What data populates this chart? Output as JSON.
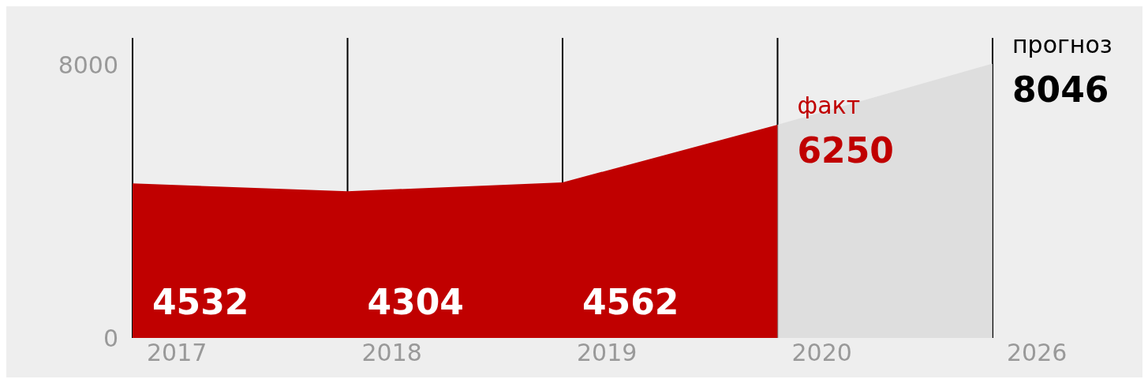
{
  "chart_data": {
    "type": "area",
    "categories": [
      "2017",
      "2018",
      "2019",
      "2020",
      "2026"
    ],
    "series": [
      {
        "name": "факт",
        "color": "#c00000",
        "values": [
          4532,
          4304,
          4562,
          6250,
          null
        ],
        "value_labels": [
          "4532",
          "4304",
          "4562",
          "6250",
          null
        ]
      },
      {
        "name": "прогноз",
        "color": "#d9d9d9",
        "values": [
          null,
          null,
          null,
          6250,
          8046
        ],
        "value_labels": [
          null,
          null,
          null,
          null,
          "8046"
        ]
      }
    ],
    "ylim": [
      0,
      8800
    ],
    "yticks": [
      0,
      8000
    ],
    "grid": "x"
  }
}
